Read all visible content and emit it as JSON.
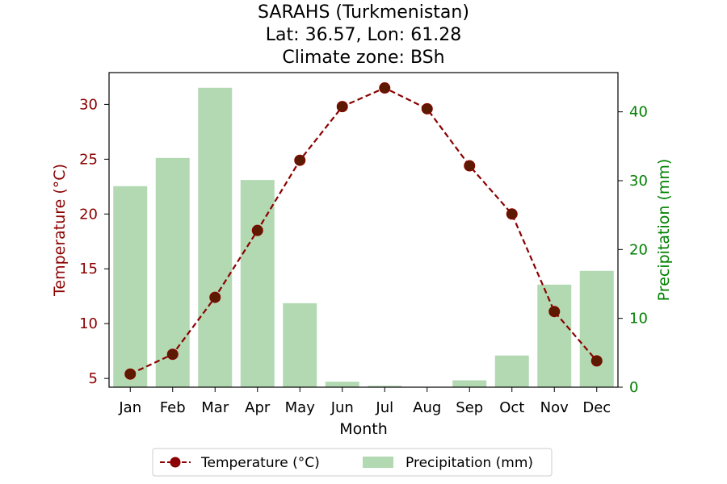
{
  "chart_data": {
    "type": "bar+line",
    "title_lines": [
      "SARAHS (Turkmenistan)",
      "Lat: 36.57, Lon: 61.28",
      "Climate zone: BSh"
    ],
    "xlabel": "Month",
    "ylabel_left": "Temperature (°C)",
    "ylabel_right": "Precipitation (mm)",
    "categories": [
      "Jan",
      "Feb",
      "Mar",
      "Apr",
      "May",
      "Jun",
      "Jul",
      "Aug",
      "Sep",
      "Oct",
      "Nov",
      "Dec"
    ],
    "temperature": {
      "name": "Temperature (°C)",
      "color": "#8b0000",
      "values": [
        5.4,
        7.2,
        12.4,
        18.5,
        24.9,
        29.8,
        31.5,
        29.6,
        24.4,
        20.0,
        11.1,
        6.6
      ]
    },
    "precipitation": {
      "name": "Precipitation (mm)",
      "color": "#b2d9b2",
      "values": [
        29.2,
        33.3,
        43.5,
        30.1,
        12.2,
        0.8,
        0.2,
        0.0,
        1.0,
        4.6,
        14.9,
        16.9
      ]
    },
    "ylim_left": [
      4.2,
      32.9
    ],
    "ylim_right": [
      0,
      45.7
    ],
    "yticks_left": [
      5,
      10,
      15,
      20,
      25,
      30
    ],
    "yticks_right": [
      0,
      10,
      20,
      30,
      40
    ],
    "left_axis_color": "#8b0000",
    "right_axis_color": "#008000",
    "legend_position": "bottom-center"
  }
}
